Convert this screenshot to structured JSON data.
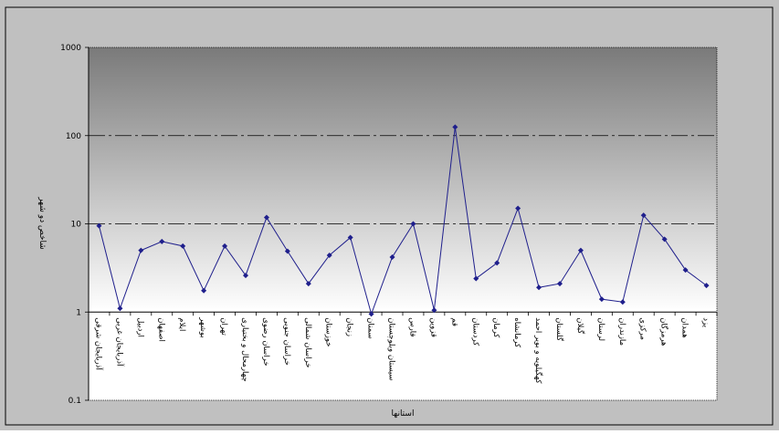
{
  "chart_data": {
    "type": "line",
    "title": "",
    "xlabel": "استانها",
    "ylabel": "شاخص دو شهر",
    "yscale": "log",
    "ylim": [
      0.1,
      1000
    ],
    "y_ticks": [
      "0.1",
      "1",
      "10",
      "100",
      "1000"
    ],
    "grid": "dash-dot lines at 10 and 100",
    "legend": "none",
    "colors": {
      "line": "#1f1f8c",
      "outer_background": "#c0c0c0",
      "plot_gradient_top": "#7a7a7a",
      "plot_gradient_bottom": "#ffffff"
    },
    "categories": [
      "آذربایجان شرقی",
      "آذربایجان غربی",
      "اردبیل",
      "اصفهان",
      "ایلام",
      "بوشهر",
      "تهران",
      "چهارمحال و بختیاری",
      "خراسان رضوی",
      "خراسان جنوبی",
      "خراسان شمالی",
      "خوزستان",
      "زنجان",
      "سمنان",
      "سیستان وبلوچستان",
      "فارس",
      "قزوین",
      "قم",
      "کردستان",
      "کرمان",
      "کرمانشاه",
      "کهگیلویه و بویر احمد",
      "گلستان",
      "گیلان",
      "لرستان",
      "مازندران",
      "مرکزی",
      "هرمزگان",
      "همدان",
      "یزد"
    ],
    "series": [
      {
        "values": [
          9.5,
          1.1,
          5.0,
          6.3,
          5.6,
          1.75,
          5.6,
          2.6,
          11.8,
          4.9,
          2.1,
          4.4,
          7.0,
          0.95,
          4.2,
          10.0,
          1.05,
          125,
          2.4,
          3.6,
          15.0,
          1.9,
          2.1,
          5.0,
          1.4,
          1.3,
          12.5,
          6.7,
          3.0,
          2.0
        ]
      }
    ]
  }
}
